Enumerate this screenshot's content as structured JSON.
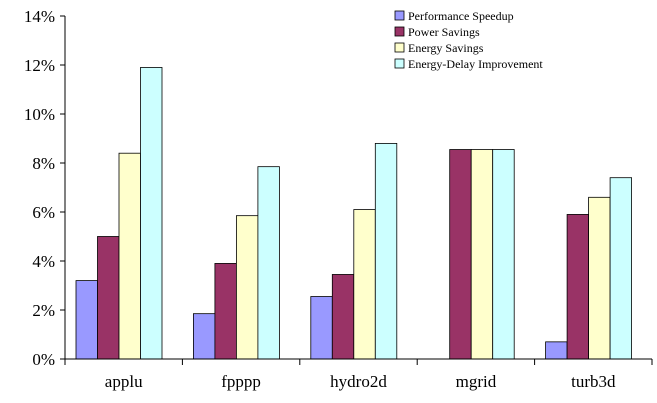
{
  "chart_data": {
    "type": "bar",
    "title": "",
    "xlabel": "",
    "ylabel": "",
    "categories": [
      "applu",
      "fpppp",
      "hydro2d",
      "mgrid",
      "turb3d"
    ],
    "series": [
      {
        "name": "Performance Speedup",
        "color": "#9999ff",
        "values": [
          3.2,
          1.85,
          2.55,
          0.0,
          0.7
        ]
      },
      {
        "name": "Power Savings",
        "color": "#993366",
        "values": [
          5.0,
          3.9,
          3.45,
          8.55,
          5.9
        ]
      },
      {
        "name": "Energy Savings",
        "color": "#ffffcc",
        "values": [
          8.4,
          5.85,
          6.1,
          8.55,
          6.6
        ]
      },
      {
        "name": "Energy-Delay Improvement",
        "color": "#ccffff",
        "values": [
          11.9,
          7.85,
          8.8,
          8.55,
          7.4
        ]
      }
    ],
    "ylim": [
      0,
      14
    ],
    "yticks": [
      0,
      2,
      4,
      6,
      8,
      10,
      12,
      14
    ],
    "ytick_labels": [
      "0%",
      "2%",
      "4%",
      "6%",
      "8%",
      "10%",
      "12%",
      "14%"
    ],
    "grid": false,
    "legend_position": "top-right"
  }
}
